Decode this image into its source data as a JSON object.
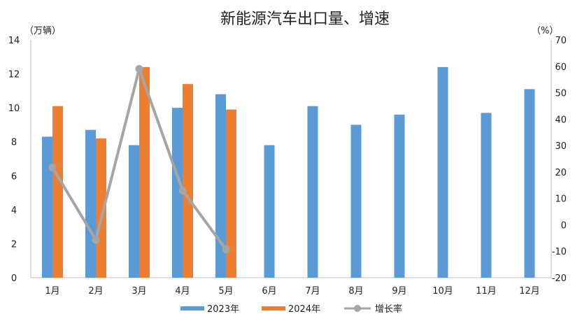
{
  "chart_data": {
    "type": "bar",
    "title": "新能源汽车出口量、增速",
    "y_left_unit": "（万辆）",
    "y_right_unit": "（%）",
    "categories": [
      "1月",
      "2月",
      "3月",
      "4月",
      "5月",
      "6月",
      "7月",
      "8月",
      "9月",
      "10月",
      "11月",
      "12月"
    ],
    "ylim_left": [
      0,
      14
    ],
    "yticks_left": [
      "0",
      "2",
      "4",
      "6",
      "8",
      "10",
      "12",
      "14"
    ],
    "ylim_right": [
      -20,
      70
    ],
    "yticks_right": [
      "-20",
      "-10",
      "0",
      "10",
      "20",
      "30",
      "40",
      "50",
      "60",
      "70"
    ],
    "series": [
      {
        "name": "2023年",
        "type": "bar",
        "axis": "left",
        "color": "#5b9bd5",
        "values": [
          8.3,
          8.7,
          7.8,
          10.0,
          10.8,
          7.8,
          10.1,
          9.0,
          9.6,
          12.4,
          9.7,
          11.1
        ]
      },
      {
        "name": "2024年",
        "type": "bar",
        "axis": "left",
        "color": "#ed7d31",
        "values": [
          10.1,
          8.2,
          12.4,
          11.4,
          9.9,
          null,
          null,
          null,
          null,
          null,
          null,
          null
        ]
      },
      {
        "name": "增长率",
        "type": "line",
        "axis": "right",
        "color": "#a5a5a5",
        "values": [
          21.7,
          -5.7,
          59.0,
          13.0,
          -9.3,
          null,
          null,
          null,
          null,
          null,
          null,
          null
        ]
      }
    ],
    "negative_tick_color": "#ff0000",
    "legend_position": "bottom"
  }
}
